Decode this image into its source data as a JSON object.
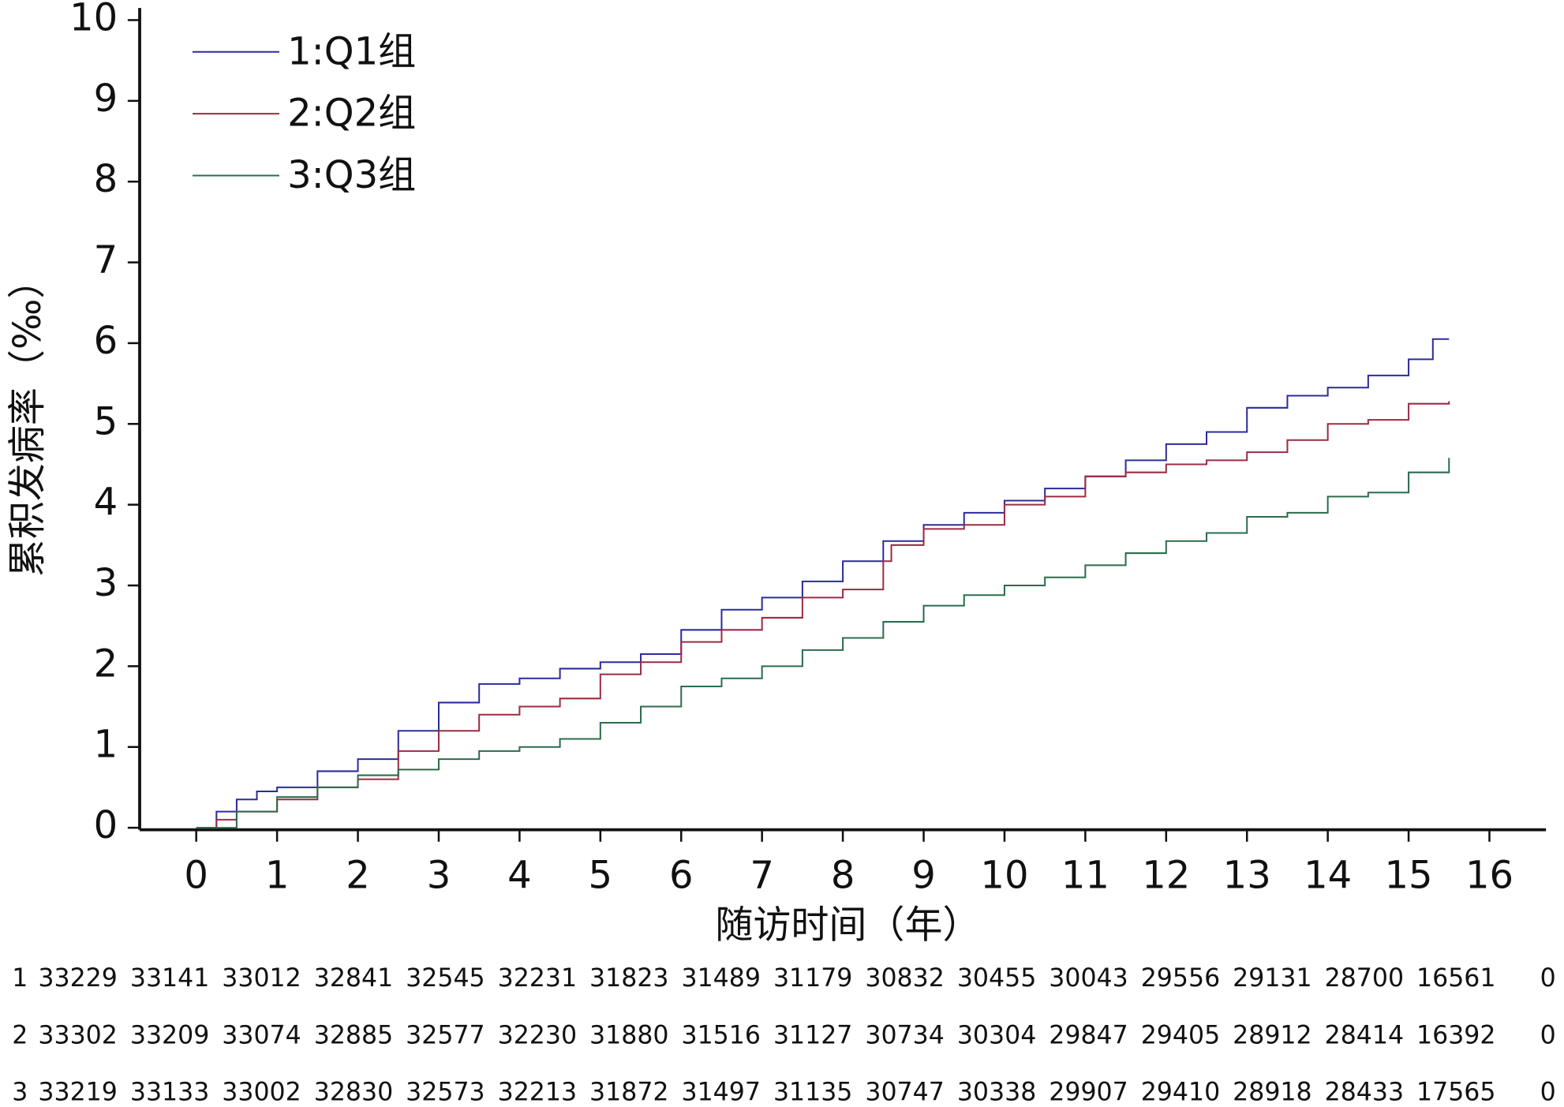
{
  "chart_data": {
    "type": "line",
    "step": true,
    "x_label": "随访时间（年）",
    "y_label": "累积发病率（‰）",
    "xlim": [
      -0.7,
      16.7
    ],
    "ylim": [
      0,
      10.15
    ],
    "xticks": [
      0,
      1,
      2,
      3,
      4,
      5,
      6,
      7,
      8,
      9,
      10,
      11,
      12,
      13,
      14,
      15,
      16
    ],
    "yticks": [
      0,
      1,
      2,
      3,
      4,
      5,
      6,
      7,
      8,
      9,
      10
    ],
    "series": [
      {
        "name": "1:Q1组",
        "color": "#2c2c9c",
        "x": [
          0,
          0.25,
          0.5,
          0.75,
          1,
          1.5,
          2,
          2.5,
          3,
          3.5,
          4,
          4.5,
          5,
          5.5,
          6,
          6.5,
          7,
          7.5,
          8,
          8.5,
          9,
          9.5,
          10,
          10.5,
          11,
          11.5,
          12,
          12.5,
          13,
          13.5,
          14,
          14.5,
          15,
          15.3,
          15.5
        ],
        "values": [
          0,
          0.2,
          0.35,
          0.45,
          0.5,
          0.7,
          0.85,
          1.2,
          1.55,
          1.78,
          1.85,
          1.97,
          2.05,
          2.15,
          2.45,
          2.7,
          2.85,
          3.05,
          3.3,
          3.55,
          3.75,
          3.9,
          4.05,
          4.2,
          4.35,
          4.55,
          4.75,
          4.9,
          5.2,
          5.35,
          5.45,
          5.6,
          5.8,
          6.05,
          6.05
        ]
      },
      {
        "name": "2:Q2组",
        "color": "#9c2c44",
        "x": [
          0,
          0.25,
          0.5,
          1,
          1.5,
          2,
          2.5,
          3,
          3.5,
          4,
          4.5,
          5,
          5.5,
          6,
          6.5,
          7,
          7.5,
          8,
          8.5,
          8.6,
          9,
          9.5,
          10,
          10.5,
          11,
          11.5,
          12,
          12.5,
          13,
          13.5,
          14,
          14.5,
          15,
          15.5
        ],
        "values": [
          0,
          0.1,
          0.2,
          0.35,
          0.5,
          0.6,
          0.95,
          1.2,
          1.4,
          1.5,
          1.6,
          1.9,
          2.05,
          2.3,
          2.45,
          2.6,
          2.85,
          2.95,
          3.3,
          3.5,
          3.7,
          3.75,
          4.0,
          4.1,
          4.35,
          4.4,
          4.5,
          4.55,
          4.65,
          4.8,
          5.0,
          5.05,
          5.25,
          5.28
        ]
      },
      {
        "name": "3:Q3组",
        "color": "#2c6c4c",
        "x": [
          0,
          0.5,
          1,
          1.5,
          2,
          2.5,
          3,
          3.5,
          4,
          4.5,
          5,
          5.5,
          6,
          6.5,
          7,
          7.5,
          8,
          8.5,
          9,
          9.5,
          10,
          10.5,
          11,
          11.5,
          12,
          12.5,
          13,
          13.5,
          14,
          14.5,
          15,
          15.5
        ],
        "values": [
          0,
          0.2,
          0.38,
          0.5,
          0.65,
          0.72,
          0.85,
          0.95,
          1.0,
          1.1,
          1.3,
          1.5,
          1.75,
          1.85,
          2.0,
          2.2,
          2.35,
          2.55,
          2.75,
          2.88,
          3.0,
          3.1,
          3.25,
          3.4,
          3.55,
          3.65,
          3.85,
          3.9,
          4.1,
          4.15,
          4.4,
          4.58
        ]
      }
    ],
    "risk_table": [
      {
        "label": "1",
        "counts": [
          33229,
          33141,
          33012,
          32841,
          32545,
          32231,
          31823,
          31489,
          31179,
          30832,
          30455,
          30043,
          29556,
          29131,
          28700,
          16561,
          0
        ]
      },
      {
        "label": "2",
        "counts": [
          33302,
          33209,
          33074,
          32885,
          32577,
          32230,
          31880,
          31516,
          31127,
          30734,
          30304,
          29847,
          29405,
          28912,
          28414,
          16392,
          0
        ]
      },
      {
        "label": "3",
        "counts": [
          33219,
          33133,
          33002,
          32830,
          32573,
          32213,
          31872,
          31497,
          31135,
          30747,
          30338,
          29907,
          29410,
          28918,
          28433,
          17565,
          0
        ]
      }
    ]
  }
}
